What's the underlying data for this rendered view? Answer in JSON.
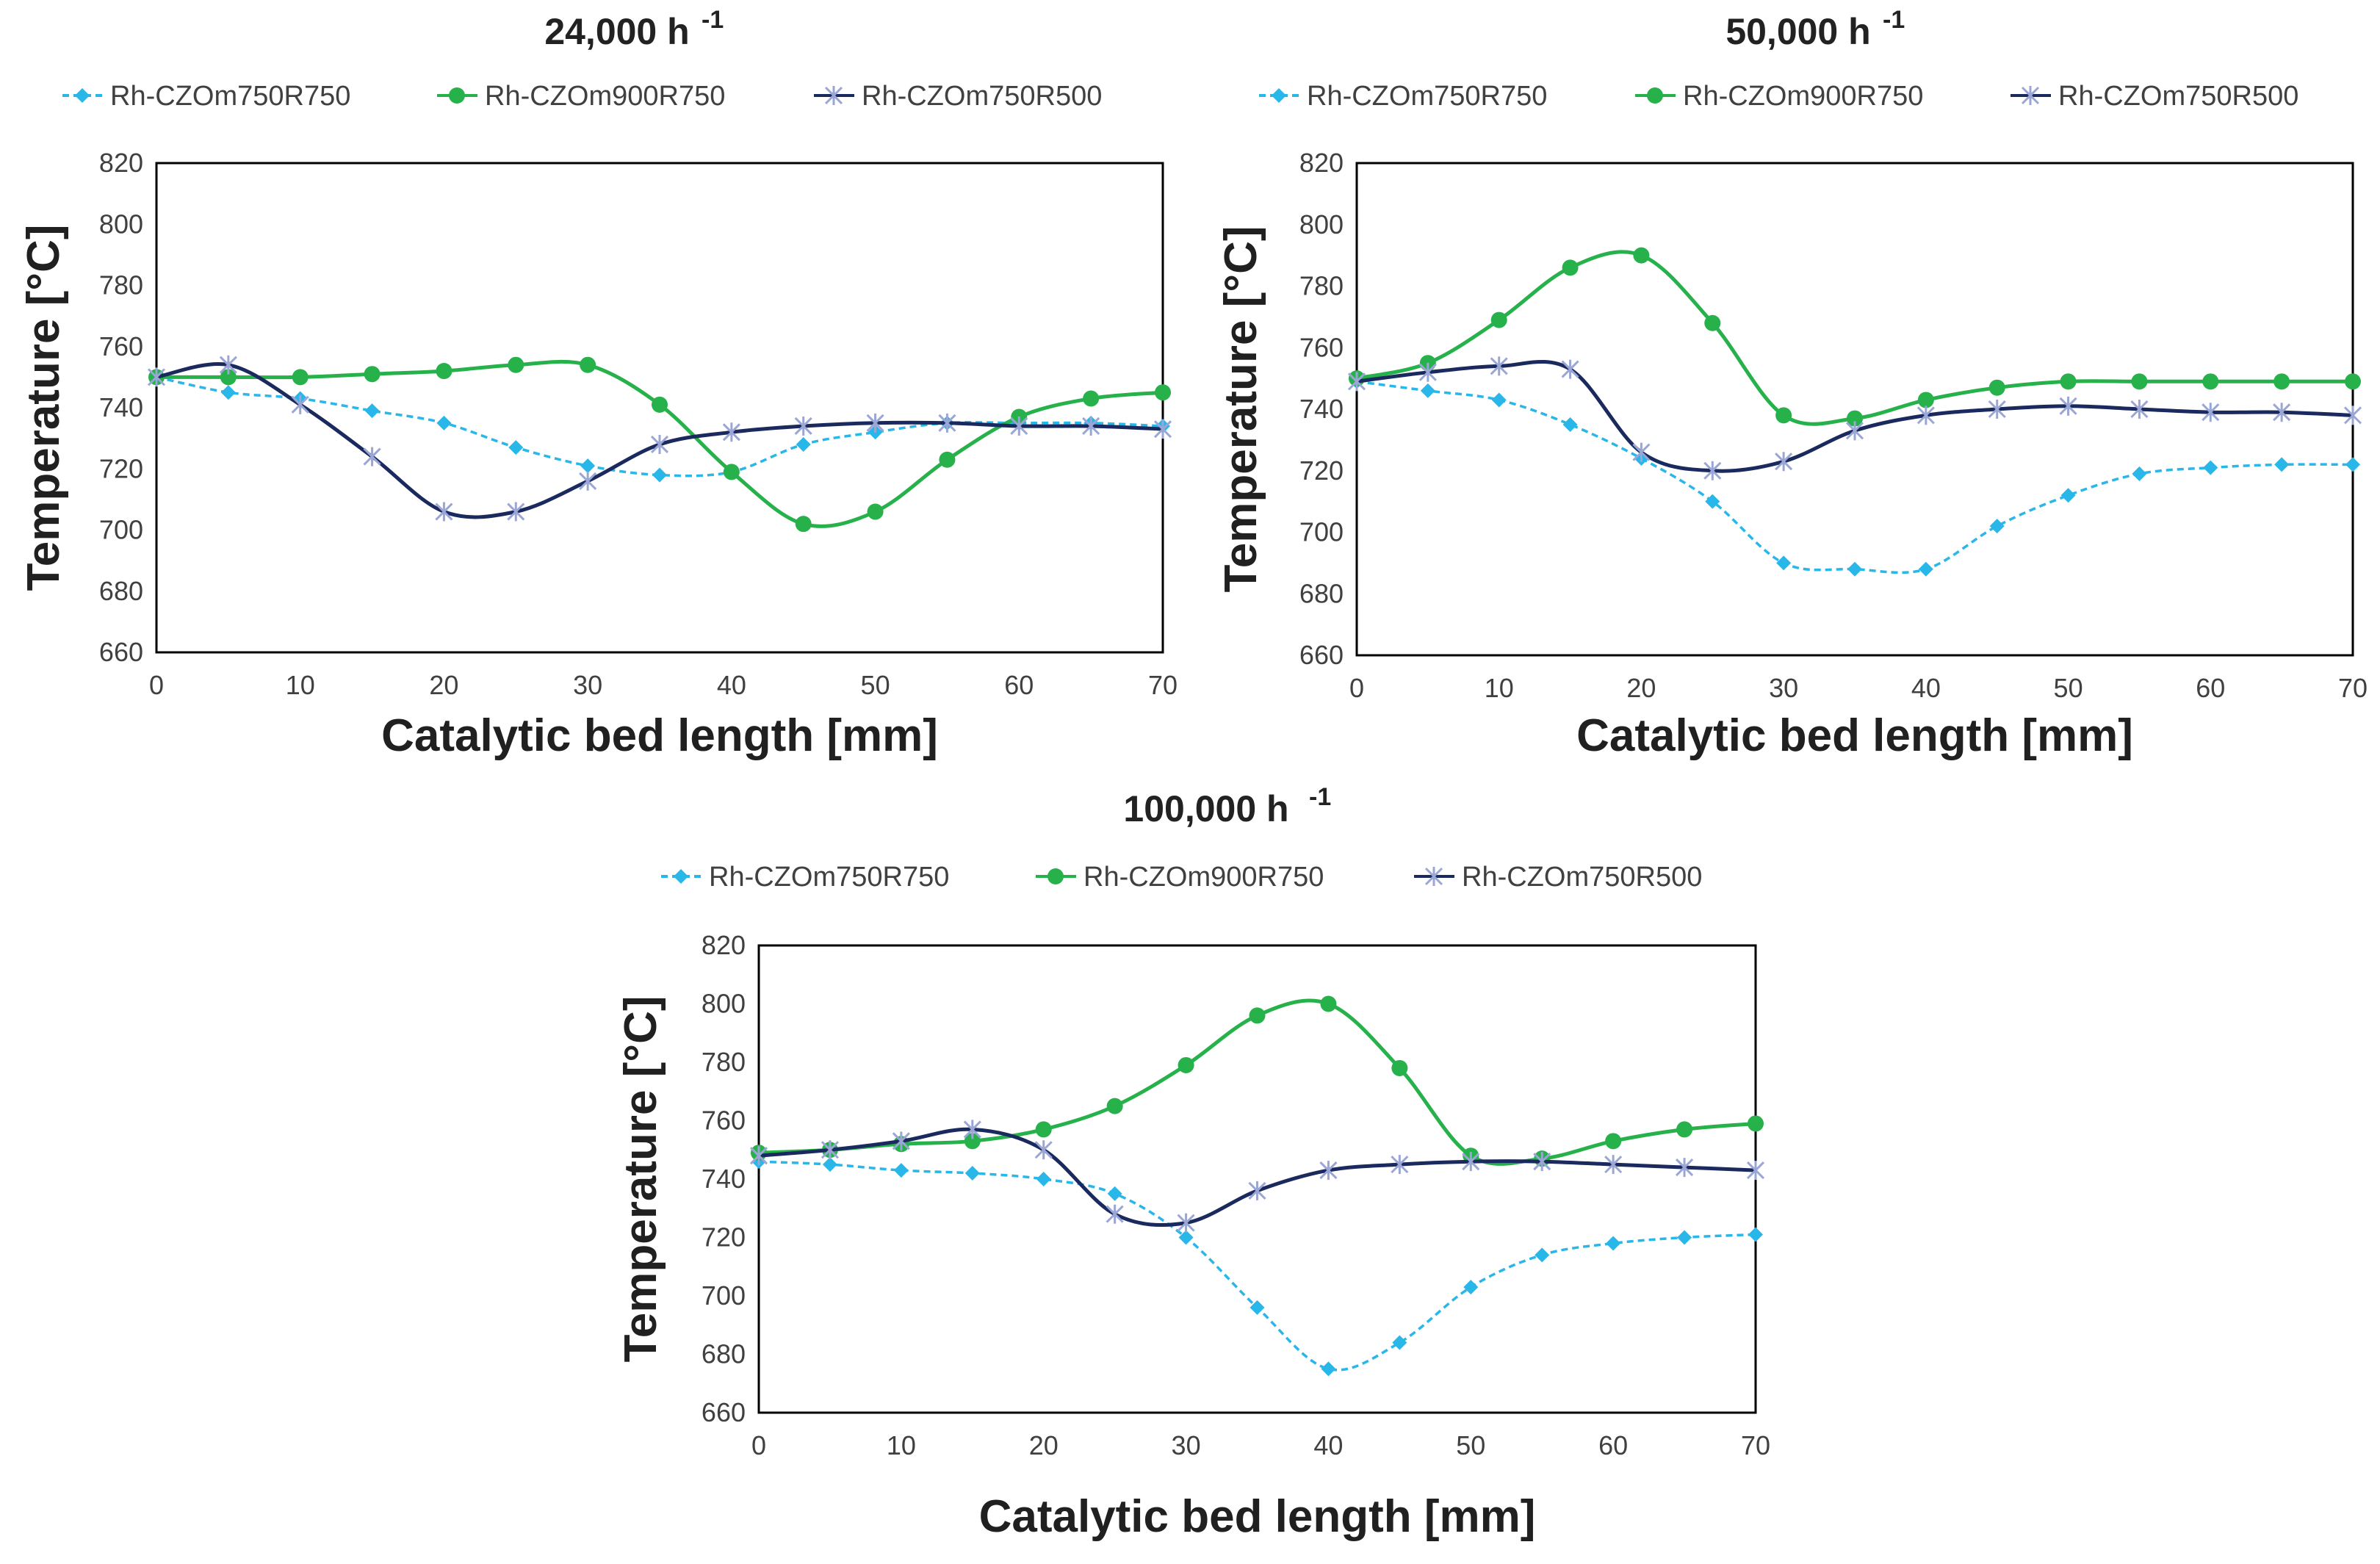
{
  "chart_data": [
    {
      "type": "line",
      "title": "24,000 h",
      "title_superscript": "-1",
      "xlabel": "Catalytic bed length [mm]",
      "ylabel": "Temperature [°C]",
      "x": [
        0,
        5,
        10,
        15,
        20,
        25,
        30,
        35,
        40,
        45,
        50,
        55,
        60,
        65,
        70
      ],
      "xlim": [
        0,
        70
      ],
      "ylim": [
        660,
        820
      ],
      "xticks": [
        "0",
        "10",
        "20",
        "30",
        "40",
        "50",
        "60",
        "70"
      ],
      "yticks": [
        "660",
        "680",
        "700",
        "720",
        "740",
        "760",
        "780",
        "800",
        "820"
      ],
      "legend_position": "top",
      "series": [
        {
          "name": "Rh-CZOm750R750",
          "color": "#29B6E8",
          "marker": "diamond",
          "dashed": true,
          "values": [
            750,
            745,
            743,
            739,
            735,
            727,
            721,
            718,
            719,
            728,
            732,
            735,
            735,
            735,
            734
          ]
        },
        {
          "name": "Rh-CZOm900R750",
          "color": "#27B14B",
          "marker": "circle",
          "dashed": false,
          "values": [
            750,
            750,
            750,
            751,
            752,
            754,
            754,
            741,
            719,
            702,
            706,
            723,
            737,
            743,
            745
          ]
        },
        {
          "name": "Rh-CZOm750R500",
          "color": "#1B2A5E",
          "marker": "star",
          "dashed": false,
          "values": [
            750,
            754,
            741,
            724,
            706,
            706,
            716,
            728,
            732,
            734,
            735,
            735,
            734,
            734,
            733
          ]
        }
      ]
    },
    {
      "type": "line",
      "title": "50,000 h",
      "title_superscript": "-1",
      "xlabel": "Catalytic bed length [mm]",
      "ylabel": "Temperature [°C]",
      "x": [
        0,
        5,
        10,
        15,
        20,
        25,
        30,
        35,
        40,
        45,
        50,
        55,
        60,
        65,
        70
      ],
      "xlim": [
        0,
        70
      ],
      "ylim": [
        660,
        820
      ],
      "xticks": [
        "0",
        "10",
        "20",
        "30",
        "40",
        "50",
        "60",
        "70"
      ],
      "yticks": [
        "660",
        "680",
        "700",
        "720",
        "740",
        "760",
        "780",
        "800",
        "820"
      ],
      "legend_position": "top",
      "series": [
        {
          "name": "Rh-CZOm750R750",
          "color": "#29B6E8",
          "marker": "diamond",
          "dashed": true,
          "values": [
            749,
            746,
            743,
            735,
            724,
            710,
            690,
            688,
            688,
            702,
            712,
            719,
            721,
            722,
            722
          ]
        },
        {
          "name": "Rh-CZOm900R750",
          "color": "#27B14B",
          "marker": "circle",
          "dashed": false,
          "values": [
            750,
            755,
            769,
            786,
            790,
            768,
            738,
            737,
            743,
            747,
            749,
            749,
            749,
            749,
            749
          ]
        },
        {
          "name": "Rh-CZOm750R500",
          "color": "#1B2A5E",
          "marker": "star",
          "dashed": false,
          "values": [
            749,
            752,
            754,
            753,
            726,
            720,
            723,
            733,
            738,
            740,
            741,
            740,
            739,
            739,
            738
          ]
        }
      ]
    },
    {
      "type": "line",
      "title": "100,000 h",
      "title_superscript": "-1",
      "xlabel": "Catalytic bed length [mm]",
      "ylabel": "Temperature [°C]",
      "x": [
        0,
        5,
        10,
        15,
        20,
        25,
        30,
        35,
        40,
        45,
        50,
        55,
        60,
        65,
        70
      ],
      "xlim": [
        0,
        70
      ],
      "ylim": [
        660,
        820
      ],
      "xticks": [
        "0",
        "10",
        "20",
        "30",
        "40",
        "50",
        "60",
        "70"
      ],
      "yticks": [
        "660",
        "680",
        "700",
        "720",
        "740",
        "760",
        "780",
        "800",
        "820"
      ],
      "legend_position": "top",
      "series": [
        {
          "name": "Rh-CZOm750R750",
          "color": "#29B6E8",
          "marker": "diamond",
          "dashed": true,
          "values": [
            746,
            745,
            743,
            742,
            740,
            735,
            720,
            696,
            675,
            684,
            703,
            714,
            718,
            720,
            721
          ]
        },
        {
          "name": "Rh-CZOm900R750",
          "color": "#27B14B",
          "marker": "circle",
          "dashed": false,
          "values": [
            749,
            750,
            752,
            753,
            757,
            765,
            779,
            796,
            800,
            778,
            748,
            747,
            753,
            757,
            759
          ]
        },
        {
          "name": "Rh-CZOm750R500",
          "color": "#1B2A5E",
          "marker": "star",
          "dashed": false,
          "values": [
            748,
            750,
            753,
            757,
            750,
            728,
            725,
            736,
            743,
            745,
            746,
            746,
            745,
            744,
            743
          ]
        }
      ]
    }
  ]
}
